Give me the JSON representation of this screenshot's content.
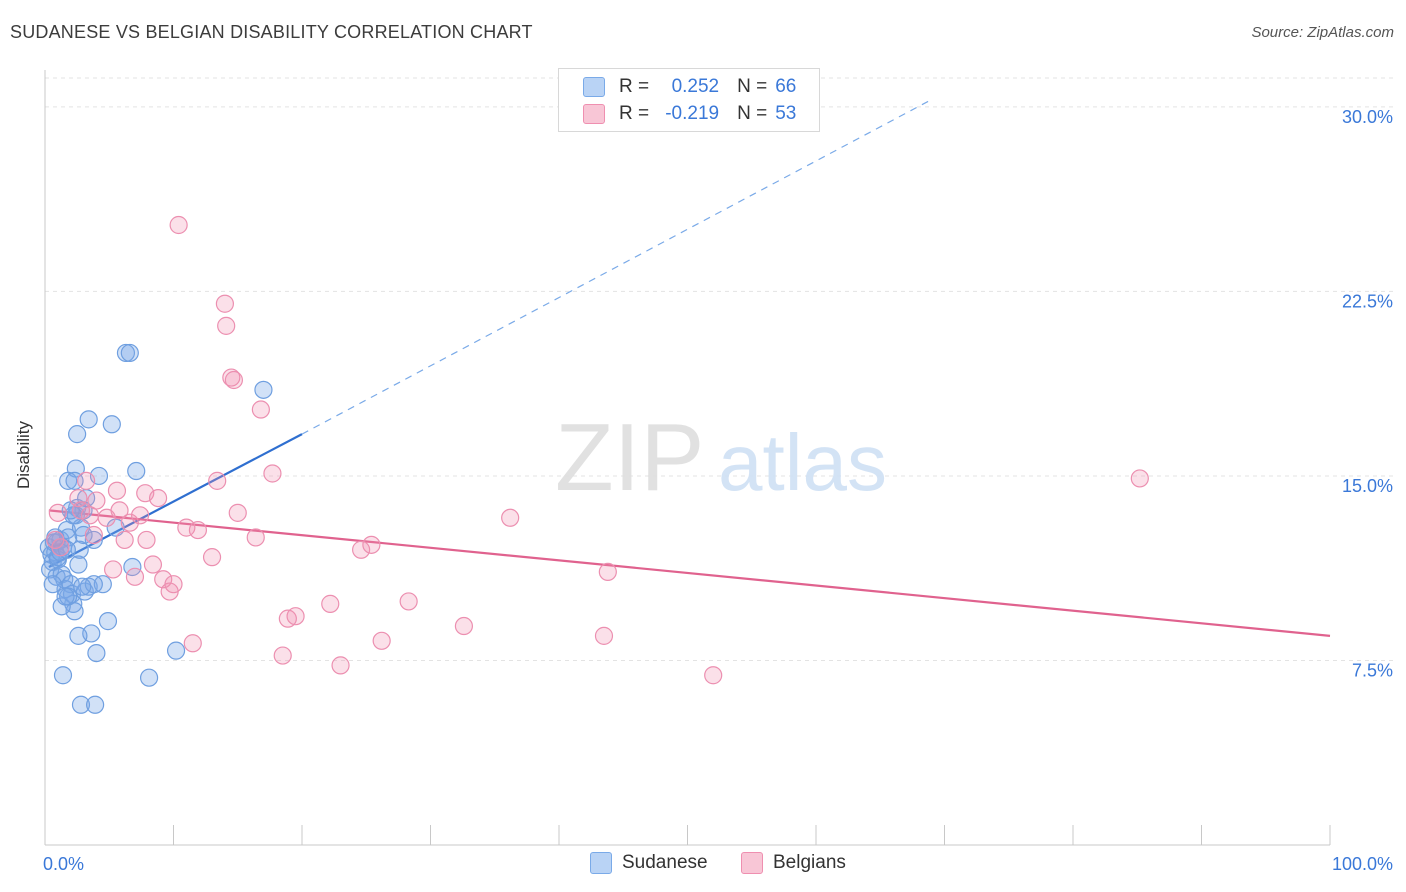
{
  "title": "SUDANESE VS BELGIAN DISABILITY CORRELATION CHART",
  "source": "Source: ZipAtlas.com",
  "watermark": {
    "zip": "ZIP",
    "atlas": "atlas"
  },
  "legend": {
    "r_label": "R =",
    "n_label": "N =",
    "series": [
      {
        "name": "Sudanese",
        "r": "0.252",
        "n": "66",
        "color": "#7aaae8",
        "fill": "#b9d3f5"
      },
      {
        "name": "Belgians",
        "r": "-0.219",
        "n": "53",
        "color": "#ef8fb0",
        "fill": "#f8c6d6"
      }
    ]
  },
  "chart_data": {
    "type": "scatter",
    "title": "SUDANESE VS BELGIAN DISABILITY CORRELATION CHART",
    "xlabel": "",
    "ylabel": "Disability",
    "xlim": [
      0,
      100
    ],
    "ylim": [
      0,
      31.5
    ],
    "x_tick_labels": [
      "0.0%",
      "100.0%"
    ],
    "y_ticks": [
      7.5,
      15.0,
      22.5,
      30.0
    ],
    "y_tick_labels": [
      "7.5%",
      "15.0%",
      "22.5%",
      "30.0%"
    ],
    "series": [
      {
        "name": "Sudanese",
        "color": "#3a78d8",
        "points": [
          [
            0.3,
            12.1
          ],
          [
            0.5,
            11.8
          ],
          [
            0.6,
            11.5
          ],
          [
            0.8,
            11.9
          ],
          [
            0.4,
            11.2
          ],
          [
            0.7,
            12.3
          ],
          [
            0.9,
            10.9
          ],
          [
            1.0,
            11.6
          ],
          [
            1.2,
            12.4
          ],
          [
            1.3,
            11.0
          ],
          [
            1.5,
            10.8
          ],
          [
            1.6,
            10.4
          ],
          [
            1.7,
            12.8
          ],
          [
            1.8,
            12.5
          ],
          [
            2.0,
            10.6
          ],
          [
            2.1,
            10.2
          ],
          [
            2.2,
            9.8
          ],
          [
            2.3,
            9.5
          ],
          [
            2.4,
            13.4
          ],
          [
            2.5,
            13.7
          ],
          [
            2.6,
            11.4
          ],
          [
            2.7,
            12.0
          ],
          [
            2.8,
            12.9
          ],
          [
            3.0,
            13.6
          ],
          [
            3.1,
            10.3
          ],
          [
            3.2,
            14.1
          ],
          [
            3.4,
            10.5
          ],
          [
            3.6,
            8.6
          ],
          [
            3.8,
            12.4
          ],
          [
            4.0,
            7.8
          ],
          [
            4.2,
            15.0
          ],
          [
            4.5,
            10.6
          ],
          [
            4.9,
            9.1
          ],
          [
            5.2,
            17.1
          ],
          [
            5.5,
            12.9
          ],
          [
            6.3,
            20.0
          ],
          [
            6.6,
            20.0
          ],
          [
            6.8,
            11.3
          ],
          [
            7.1,
            15.2
          ],
          [
            8.1,
            6.8
          ],
          [
            10.2,
            7.9
          ],
          [
            17.0,
            18.5
          ],
          [
            2.4,
            15.3
          ],
          [
            1.8,
            14.8
          ],
          [
            2.5,
            16.7
          ],
          [
            3.4,
            17.3
          ],
          [
            1.3,
            9.7
          ],
          [
            2.6,
            8.5
          ],
          [
            1.4,
            6.9
          ],
          [
            2.8,
            5.7
          ],
          [
            3.9,
            5.7
          ],
          [
            1.8,
            10.1
          ],
          [
            0.9,
            12.3
          ],
          [
            1.0,
            11.7
          ],
          [
            1.4,
            12.1
          ],
          [
            2.3,
            14.8
          ],
          [
            2.2,
            13.4
          ],
          [
            0.6,
            10.6
          ],
          [
            3.8,
            10.6
          ],
          [
            2.9,
            10.5
          ],
          [
            1.6,
            10.1
          ],
          [
            2.0,
            13.6
          ],
          [
            3.0,
            12.6
          ],
          [
            1.2,
            11.9
          ],
          [
            0.8,
            12.5
          ],
          [
            1.7,
            12.0
          ]
        ],
        "trend": {
          "x0": 0.3,
          "y0": 11.3,
          "x1": 20.0,
          "y1": 16.7,
          "dash_x1": 69.0,
          "dash_y1": 30.3
        }
      },
      {
        "name": "Belgians",
        "color": "#e0628e",
        "points": [
          [
            0.8,
            12.4
          ],
          [
            1.0,
            13.5
          ],
          [
            1.2,
            12.1
          ],
          [
            2.6,
            14.1
          ],
          [
            2.8,
            13.6
          ],
          [
            3.2,
            14.8
          ],
          [
            3.5,
            13.4
          ],
          [
            3.8,
            12.6
          ],
          [
            4.0,
            14.0
          ],
          [
            4.8,
            13.3
          ],
          [
            5.3,
            11.2
          ],
          [
            5.6,
            14.4
          ],
          [
            5.8,
            13.6
          ],
          [
            6.2,
            12.4
          ],
          [
            6.6,
            13.1
          ],
          [
            7.0,
            10.9
          ],
          [
            7.4,
            13.4
          ],
          [
            7.8,
            14.3
          ],
          [
            8.4,
            11.4
          ],
          [
            8.8,
            14.1
          ],
          [
            9.2,
            10.8
          ],
          [
            9.7,
            10.3
          ],
          [
            10.0,
            10.6
          ],
          [
            10.4,
            25.2
          ],
          [
            11.0,
            12.9
          ],
          [
            11.5,
            8.2
          ],
          [
            11.9,
            12.8
          ],
          [
            13.0,
            11.7
          ],
          [
            13.4,
            14.8
          ],
          [
            14.0,
            22.0
          ],
          [
            14.1,
            21.1
          ],
          [
            14.5,
            19.0
          ],
          [
            14.7,
            18.9
          ],
          [
            15.0,
            13.5
          ],
          [
            16.4,
            12.5
          ],
          [
            16.8,
            17.7
          ],
          [
            17.7,
            15.1
          ],
          [
            18.5,
            7.7
          ],
          [
            18.9,
            9.2
          ],
          [
            19.5,
            9.3
          ],
          [
            22.2,
            9.8
          ],
          [
            23.0,
            7.3
          ],
          [
            24.6,
            12.0
          ],
          [
            25.4,
            12.2
          ],
          [
            26.2,
            8.3
          ],
          [
            28.3,
            9.9
          ],
          [
            32.6,
            8.9
          ],
          [
            36.2,
            13.3
          ],
          [
            43.5,
            8.5
          ],
          [
            43.8,
            11.1
          ],
          [
            52.0,
            6.9
          ],
          [
            85.2,
            14.9
          ],
          [
            7.9,
            12.4
          ]
        ],
        "trend": {
          "x0": 0.3,
          "y0": 13.6,
          "x1": 100.0,
          "y1": 8.5
        }
      }
    ]
  }
}
